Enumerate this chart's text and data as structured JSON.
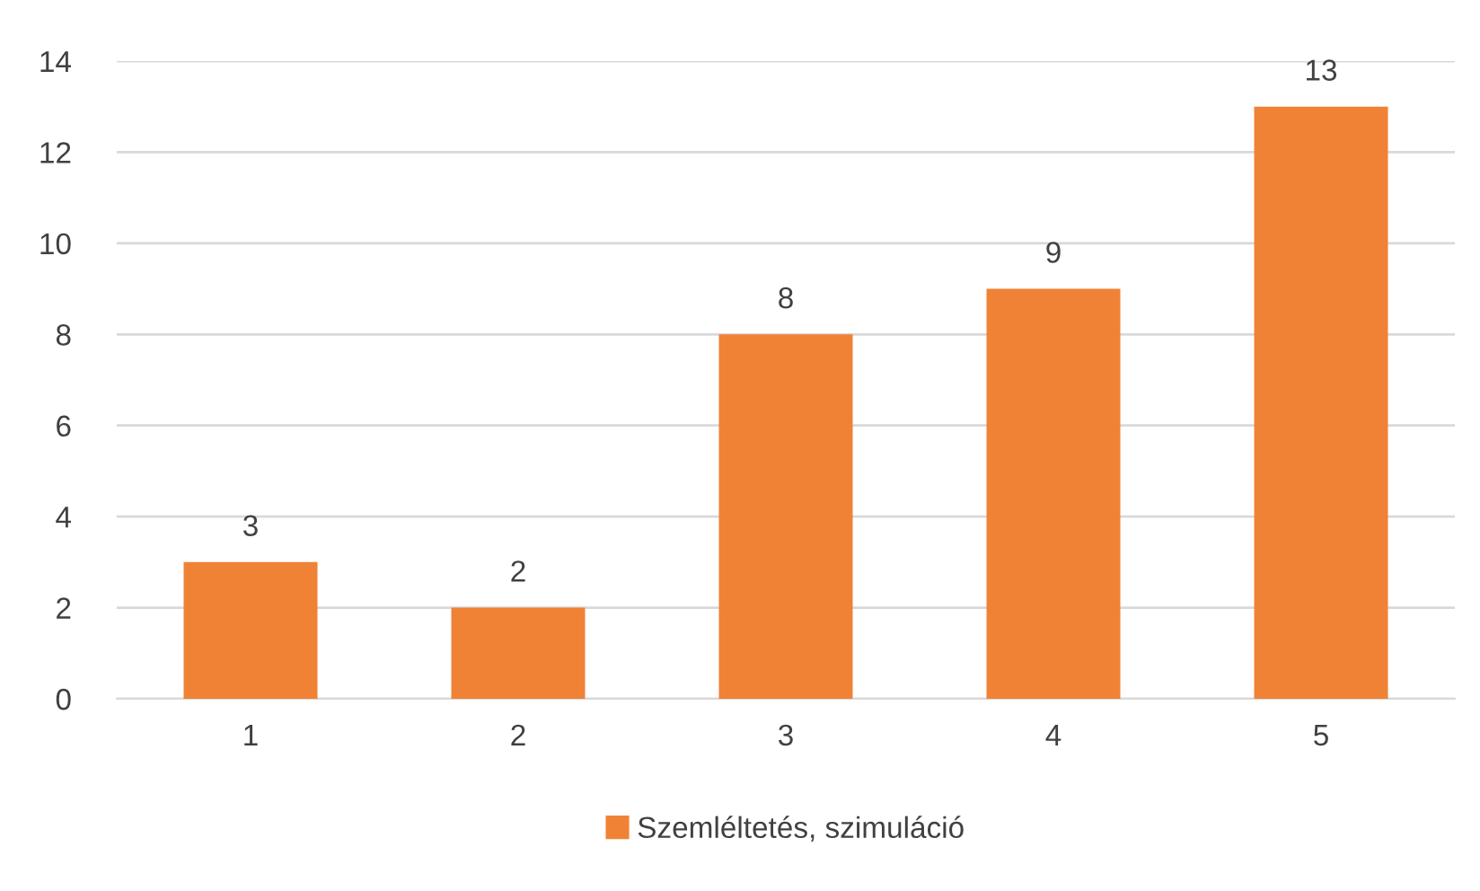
{
  "chart_data": {
    "type": "bar",
    "categories": [
      "1",
      "2",
      "3",
      "4",
      "5"
    ],
    "series": [
      {
        "name": "Szemléltetés, szimuláció",
        "color": "#f08236",
        "values": [
          3,
          2,
          8,
          9,
          13
        ]
      }
    ],
    "ylim": [
      0,
      14
    ],
    "yticks": [
      0,
      2,
      4,
      6,
      8,
      10,
      12,
      14
    ],
    "grid": "y",
    "legend": "bottom",
    "data_labels": true
  }
}
